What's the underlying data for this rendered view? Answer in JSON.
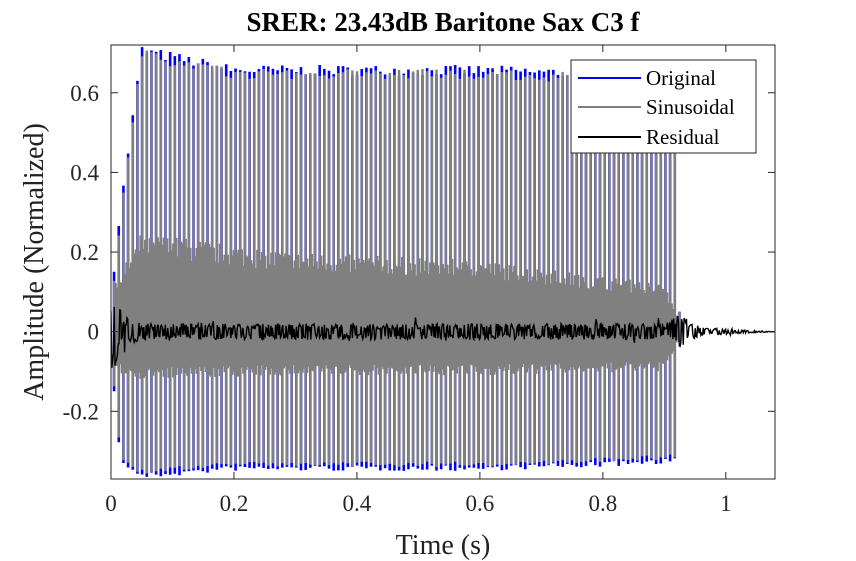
{
  "chart_data": {
    "type": "line",
    "title": "SRER: 23.43dB Baritone Sax C3 f",
    "xlabel": "Time (s)",
    "ylabel": "Amplitude (Normalized)",
    "xlim": [
      0,
      1.08
    ],
    "ylim": [
      -0.37,
      0.72
    ],
    "xticks": [
      0,
      0.2,
      0.4,
      0.6,
      0.8,
      1
    ],
    "xtick_labels": [
      "0",
      "0.2",
      "0.4",
      "0.6",
      "0.8",
      "1"
    ],
    "yticks": [
      -0.2,
      0,
      0.2,
      0.4,
      0.6
    ],
    "ytick_labels": [
      "-0.2",
      "0",
      "0.2",
      "0.4",
      "0.6"
    ],
    "grid": false,
    "legend_position": "top-right",
    "note_start_s": 0.005,
    "note_end_s": 0.925,
    "period_s": 0.0076,
    "series": [
      {
        "name": "Original",
        "color": "#0000ff",
        "envelope": {
          "t": [
            0.0,
            0.015,
            0.05,
            0.2,
            0.4,
            0.6,
            0.8,
            0.92,
            0.925
          ],
          "upper": [
            0.08,
            0.31,
            0.72,
            0.67,
            0.67,
            0.67,
            0.66,
            0.65,
            0.0
          ],
          "lower": [
            -0.06,
            -0.33,
            -0.37,
            -0.35,
            -0.35,
            -0.35,
            -0.34,
            -0.33,
            0.0
          ]
        }
      },
      {
        "name": "Sinusoidal",
        "color": "#808080",
        "envelope": {
          "t": [
            0.0,
            0.015,
            0.05,
            0.2,
            0.4,
            0.6,
            0.8,
            0.92,
            0.925
          ],
          "upper": [
            0.05,
            0.29,
            0.71,
            0.66,
            0.66,
            0.66,
            0.65,
            0.64,
            0.0
          ],
          "lower": [
            -0.05,
            -0.32,
            -0.36,
            -0.34,
            -0.34,
            -0.34,
            -0.33,
            -0.32,
            0.0
          ]
        },
        "inner_envelope": {
          "t": [
            0.0,
            0.05,
            0.3,
            0.6,
            0.9,
            0.93
          ],
          "upper": [
            0.1,
            0.25,
            0.2,
            0.18,
            0.12,
            0.0
          ],
          "lower": [
            -0.1,
            -0.12,
            -0.11,
            -0.11,
            -0.1,
            0.0
          ]
        }
      },
      {
        "name": "Residual",
        "color": "#000000",
        "envelope": {
          "t": [
            0.0,
            0.01,
            0.02,
            0.05,
            0.5,
            0.9,
            0.92,
            0.93,
            0.96,
            1.08
          ],
          "upper": [
            0.13,
            0.08,
            0.04,
            0.02,
            0.02,
            0.02,
            0.04,
            0.04,
            0.01,
            0.0
          ],
          "lower": [
            -0.13,
            -0.08,
            -0.04,
            -0.02,
            -0.02,
            -0.02,
            -0.04,
            -0.04,
            -0.01,
            0.0
          ]
        }
      }
    ]
  }
}
